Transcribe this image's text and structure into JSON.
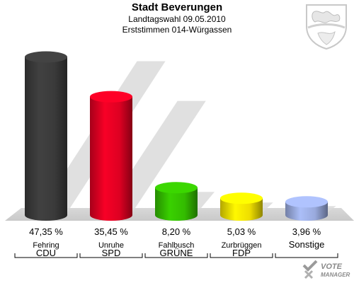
{
  "header": {
    "title": "Stadt Beverungen",
    "subtitle1": "Landtagswahl 09.05.2010",
    "subtitle2": "Erststimmen 014-Würgassen"
  },
  "chart_data": {
    "type": "bar",
    "title": "Stadt Beverungen",
    "subtitle": "Landtagswahl 09.05.2010 / Erststimmen 014-Würgassen",
    "categories": [
      "CDU",
      "SPD",
      "GRÜNE",
      "FDP",
      "Sonstige"
    ],
    "candidates": [
      "Fehring",
      "Unruhe",
      "Fahlbusch",
      "Zurbrüggen",
      ""
    ],
    "values": [
      47.35,
      35.45,
      8.2,
      5.03,
      3.96
    ],
    "value_labels": [
      "47,35 %",
      "35,45 %",
      "8,20 %",
      "5,03 %",
      "3,96 %"
    ],
    "colors": [
      "#3a3a3a",
      "#dd0022",
      "#33bb00",
      "#eedd00",
      "#99aadd"
    ],
    "ylim": [
      0,
      50
    ],
    "grid": false,
    "legend": "none"
  },
  "branding": {
    "logo_line1": "VOTE",
    "logo_line2": "MANAGER"
  }
}
